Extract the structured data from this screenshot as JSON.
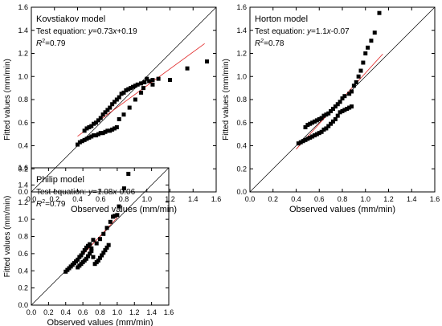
{
  "chart_data": [
    {
      "type": "scatter",
      "title": "Kovstiakov model",
      "equation": {
        "prefix": "Test equation: ",
        "y": "y",
        "mid": "=0.73",
        "x": "x",
        "rest": "+0.19"
      },
      "r2": {
        "r": "R",
        "exp": "2",
        "val": "=0.79"
      },
      "xlabel": "Observed values (mm/min)",
      "ylabel": "Fitted values (mm/min)",
      "xlim": [
        0,
        1.6
      ],
      "ylim": [
        0,
        1.6
      ],
      "xticks": [
        "0.0",
        "0.2",
        "0.4",
        "0.6",
        "0.8",
        "1.0",
        "1.2",
        "1.4",
        "1.6"
      ],
      "yticks": [
        "0.0",
        "0.2",
        "0.4",
        "0.6",
        "0.8",
        "1.0",
        "1.2",
        "1.4",
        "1.6"
      ],
      "reference_line": [
        [
          0,
          0
        ],
        [
          1.6,
          1.6
        ]
      ],
      "fit_line": {
        "slope": 0.73,
        "intercept": 0.19,
        "x_range": [
          0.4,
          1.5
        ]
      },
      "series": [
        {
          "x": [
            0.4,
            0.42,
            0.44,
            0.46,
            0.48,
            0.5,
            0.52,
            0.54,
            0.56,
            0.58,
            0.6,
            0.62,
            0.64,
            0.66,
            0.68,
            0.7,
            0.72,
            0.74,
            0.46,
            0.48,
            0.5,
            0.52,
            0.54,
            0.56,
            0.58,
            0.6,
            0.62,
            0.64,
            0.66,
            0.68,
            0.7,
            0.72,
            0.74,
            0.76,
            0.78,
            0.8,
            0.82,
            0.84,
            0.86,
            0.88,
            0.9,
            0.92,
            0.95,
            0.98,
            1.02,
            1.05,
            1.1,
            1.2,
            1.35,
            1.52,
            0.76,
            0.8,
            0.85,
            0.9,
            0.95,
            0.97,
            1.0,
            1.05
          ],
          "y": [
            0.41,
            0.43,
            0.44,
            0.45,
            0.46,
            0.47,
            0.48,
            0.49,
            0.49,
            0.5,
            0.51,
            0.51,
            0.52,
            0.53,
            0.53,
            0.54,
            0.55,
            0.56,
            0.53,
            0.55,
            0.56,
            0.57,
            0.59,
            0.6,
            0.62,
            0.64,
            0.67,
            0.69,
            0.71,
            0.73,
            0.76,
            0.78,
            0.8,
            0.82,
            0.85,
            0.86,
            0.88,
            0.89,
            0.9,
            0.91,
            0.92,
            0.93,
            0.94,
            0.95,
            0.96,
            0.97,
            0.98,
            0.97,
            1.07,
            1.13,
            0.63,
            0.67,
            0.73,
            0.8,
            0.86,
            0.9,
            0.98,
            0.93
          ]
        }
      ]
    },
    {
      "type": "scatter",
      "title": "Horton model",
      "equation": {
        "prefix": "Test equation: ",
        "y": "y",
        "mid": "=1.1",
        "x": "x",
        "rest": "-0.07"
      },
      "r2": {
        "r": "R",
        "exp": "2",
        "val": "=0.78"
      },
      "xlabel": "Observed values (mm/min)",
      "ylabel": "Fitted values (mm/min)",
      "xlim": [
        0,
        1.6
      ],
      "ylim": [
        0,
        1.6
      ],
      "xticks": [
        "0.0",
        "0.2",
        "0.4",
        "0.6",
        "0.8",
        "1.0",
        "1.2",
        "1.4",
        "1.6"
      ],
      "yticks": [
        "0.0",
        "0.2",
        "0.4",
        "0.6",
        "0.8",
        "1.0",
        "1.2",
        "1.4",
        "1.6"
      ],
      "reference_line": [
        [
          0,
          0
        ],
        [
          1.6,
          1.6
        ]
      ],
      "fit_line": {
        "slope": 1.1,
        "intercept": -0.07,
        "x_range": [
          0.4,
          1.15
        ]
      },
      "series": [
        {
          "x": [
            0.42,
            0.44,
            0.46,
            0.48,
            0.5,
            0.52,
            0.54,
            0.56,
            0.58,
            0.6,
            0.62,
            0.64,
            0.66,
            0.68,
            0.7,
            0.72,
            0.74,
            0.76,
            0.78,
            0.8,
            0.82,
            0.84,
            0.86,
            0.88,
            0.48,
            0.5,
            0.52,
            0.54,
            0.56,
            0.58,
            0.6,
            0.62,
            0.64,
            0.66,
            0.68,
            0.7,
            0.72,
            0.74,
            0.76,
            0.78,
            0.8,
            0.82,
            0.86,
            0.88,
            0.9,
            0.92,
            0.94,
            0.96,
            0.98,
            1.0,
            1.02,
            1.05,
            1.08,
            1.12
          ],
          "y": [
            0.42,
            0.43,
            0.44,
            0.45,
            0.46,
            0.47,
            0.48,
            0.49,
            0.5,
            0.51,
            0.52,
            0.54,
            0.55,
            0.57,
            0.59,
            0.61,
            0.63,
            0.66,
            0.69,
            0.7,
            0.71,
            0.72,
            0.73,
            0.74,
            0.56,
            0.58,
            0.59,
            0.6,
            0.61,
            0.62,
            0.63,
            0.64,
            0.66,
            0.67,
            0.68,
            0.7,
            0.72,
            0.74,
            0.76,
            0.78,
            0.81,
            0.83,
            0.85,
            0.87,
            0.92,
            0.95,
            1.0,
            1.05,
            1.12,
            1.2,
            1.25,
            1.31,
            1.38,
            1.55
          ]
        }
      ]
    },
    {
      "type": "scatter",
      "title": "Philip model",
      "equation": {
        "prefix": "Test equation: ",
        "y": "y",
        "mid": "=1.08",
        "x": "x",
        "rest": "-0.06"
      },
      "r2": {
        "r": "R",
        "exp": "2",
        "val": "=0.79"
      },
      "xlabel": "Observed values (mm/min)",
      "ylabel": "Fitted values (mm/min)",
      "xlim": [
        0,
        1.6
      ],
      "ylim": [
        0,
        1.6
      ],
      "xticks": [
        "0.0",
        "0.2",
        "0.4",
        "0.6",
        "0.8",
        "1.0",
        "1.2",
        "1.4",
        "1.6"
      ],
      "yticks": [
        "0.0",
        "0.2",
        "0.4",
        "0.6",
        "0.8",
        "1.0",
        "1.2",
        "1.4",
        "1.6"
      ],
      "reference_line": [
        [
          0,
          0
        ],
        [
          1.6,
          1.6
        ]
      ],
      "fit_line": {
        "slope": 1.08,
        "intercept": -0.06,
        "x_range": [
          0.4,
          1.0
        ]
      },
      "series": [
        {
          "x": [
            0.4,
            0.42,
            0.44,
            0.46,
            0.48,
            0.5,
            0.52,
            0.54,
            0.56,
            0.58,
            0.6,
            0.62,
            0.64,
            0.66,
            0.68,
            0.7,
            0.72,
            0.74,
            0.76,
            0.78,
            0.8,
            0.82,
            0.84,
            0.86,
            0.88,
            0.9,
            0.54,
            0.56,
            0.58,
            0.6,
            0.62,
            0.64,
            0.66,
            0.68,
            0.7,
            0.72,
            0.76,
            0.8,
            0.84,
            0.88,
            0.92,
            0.95,
            0.97,
            1.0,
            1.02,
            1.08,
            1.13
          ],
          "y": [
            0.39,
            0.41,
            0.43,
            0.45,
            0.47,
            0.49,
            0.51,
            0.53,
            0.56,
            0.58,
            0.61,
            0.64,
            0.67,
            0.69,
            0.71,
            0.66,
            0.56,
            0.48,
            0.5,
            0.52,
            0.55,
            0.58,
            0.61,
            0.64,
            0.67,
            0.7,
            0.44,
            0.46,
            0.48,
            0.5,
            0.52,
            0.54,
            0.57,
            0.6,
            0.63,
            0.76,
            0.72,
            0.77,
            0.83,
            0.9,
            0.97,
            1.03,
            1.04,
            1.05,
            1.15,
            1.36,
            1.53
          ]
        }
      ]
    }
  ]
}
